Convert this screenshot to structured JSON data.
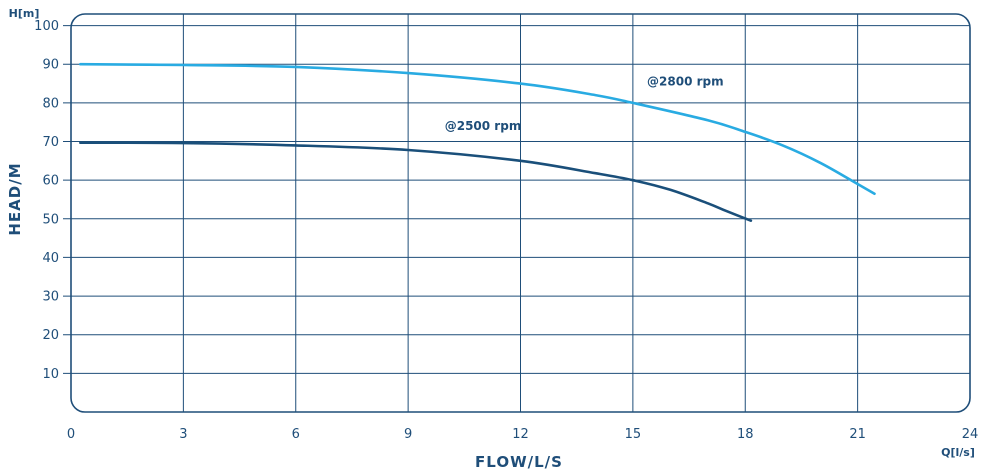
{
  "chart_data": {
    "type": "line",
    "xlabel": "FLOW/L/S",
    "ylabel": "HEAD/M",
    "x_unit": "Q[l/s]",
    "y_unit": "H[m]",
    "xlim": [
      0,
      24
    ],
    "ylim": [
      0,
      103
    ],
    "x_ticks": [
      0,
      3,
      6,
      9,
      12,
      15,
      18,
      21,
      24
    ],
    "y_ticks": [
      10,
      20,
      30,
      40,
      50,
      60,
      70,
      80,
      90,
      100
    ],
    "grid": true,
    "legend": "inline labels",
    "colors": {
      "axis": "#1f4e79",
      "grid": "#1f4e79"
    },
    "series": [
      {
        "name": "@2800 rpm",
        "color": "#29abe2",
        "x": [
          0.25,
          3,
          6,
          9,
          12,
          14,
          15,
          17,
          18,
          19,
          20,
          21,
          21.45
        ],
        "y": [
          90,
          89.8,
          89.3,
          87.7,
          85,
          82,
          80,
          75.5,
          72.5,
          69,
          64.5,
          59,
          56.5
        ]
      },
      {
        "name": "@2500 rpm",
        "color": "#1a4f7a",
        "x": [
          0.25,
          3,
          6,
          9,
          12,
          14,
          15,
          16,
          17,
          17.5,
          18.15
        ],
        "y": [
          69.7,
          69.6,
          69,
          67.8,
          65,
          61.8,
          60,
          57.5,
          54,
          52,
          49.5
        ]
      }
    ]
  }
}
